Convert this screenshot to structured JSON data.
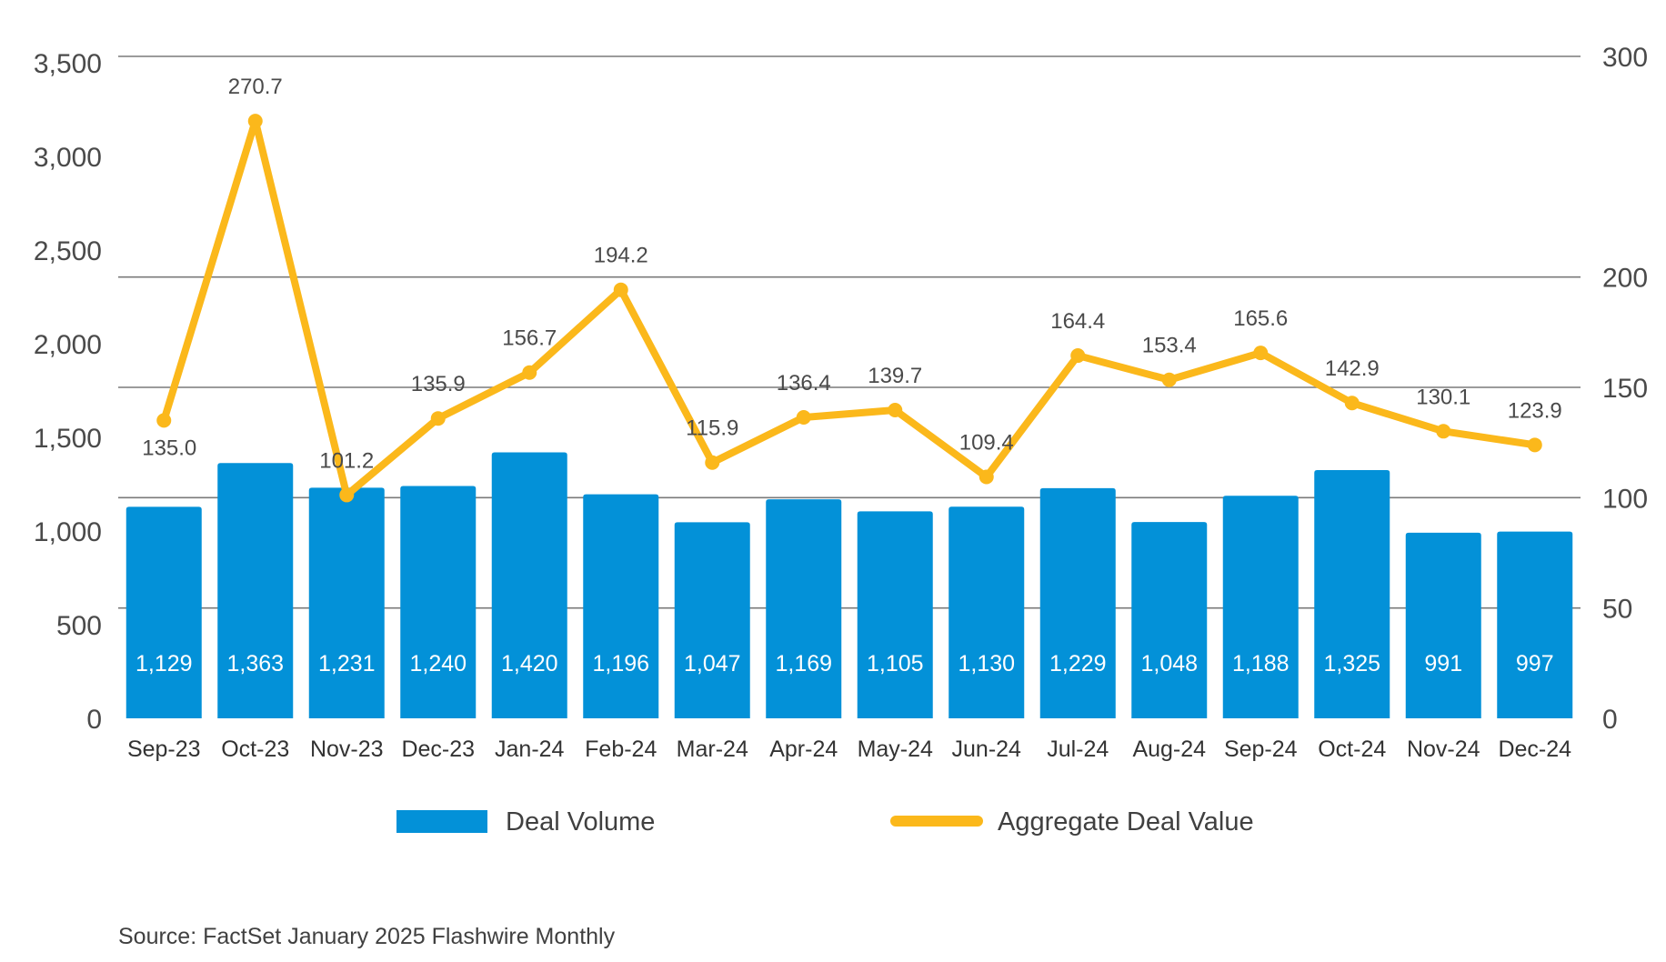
{
  "chart_data": {
    "type": "bar",
    "categories": [
      "Sep-23",
      "Oct-23",
      "Nov-23",
      "Dec-23",
      "Jan-24",
      "Feb-24",
      "Mar-24",
      "Apr-24",
      "May-24",
      "Jun-24",
      "Jul-24",
      "Aug-24",
      "Sep-24",
      "Oct-24",
      "Nov-24",
      "Dec-24"
    ],
    "series": [
      {
        "name": "Deal Volume",
        "type": "bar",
        "axis": "left",
        "color": "#0391d8",
        "values": [
          1129,
          1363,
          1231,
          1240,
          1420,
          1196,
          1047,
          1169,
          1105,
          1130,
          1229,
          1048,
          1188,
          1325,
          991,
          997
        ],
        "labels": [
          "1,129",
          "1,363",
          "1,231",
          "1,240",
          "1,420",
          "1,196",
          "1,047",
          "1,169",
          "1,105",
          "1,130",
          "1,229",
          "1,048",
          "1,188",
          "1,325",
          "991",
          "997"
        ]
      },
      {
        "name": "Aggregate Deal Value",
        "type": "line",
        "axis": "right",
        "color": "#fbb81b",
        "values": [
          135.0,
          270.7,
          101.2,
          135.9,
          156.7,
          194.2,
          115.9,
          136.4,
          139.7,
          109.4,
          164.4,
          153.4,
          165.6,
          142.9,
          130.1,
          123.9
        ],
        "labels": [
          "135.0",
          "270.7",
          "101.2",
          "135.9",
          "156.7",
          "194.2",
          "115.9",
          "136.4",
          "139.7",
          "109.4",
          "164.4",
          "153.4",
          "165.6",
          "142.9",
          "130.1",
          "123.9"
        ]
      }
    ],
    "y_left": {
      "ylim": [
        0,
        3500
      ],
      "ticks": [
        "0",
        "500",
        "1,000",
        "1,500",
        "2,000",
        "2,500",
        "3,000",
        "3,500"
      ]
    },
    "y_right": {
      "ylim": [
        0,
        300
      ],
      "ticks": [
        "0",
        "50",
        "100",
        "150",
        "200",
        "300"
      ]
    },
    "legend_position": "bottom",
    "grid": true,
    "source": "Source: FactSet January 2025 Flashwire Monthly"
  }
}
